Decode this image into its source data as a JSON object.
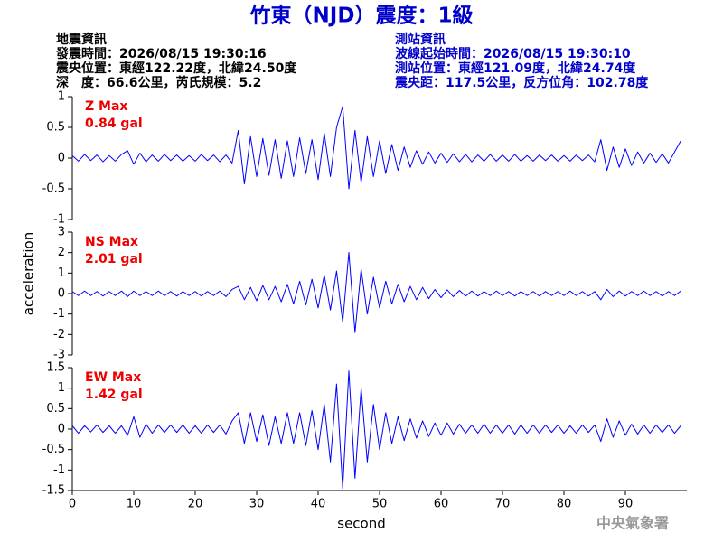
{
  "header": {
    "title": "竹東（NJD）震度：1級",
    "quake_info": [
      "地震資訊",
      "發震時間：2026/08/15 19:30:16",
      "震央位置：東經122.22度，北緯24.50度",
      "深　度：66.6公里，芮氏規模：5.2"
    ],
    "station_info": [
      "測站資訊",
      "波線起始時間：2026/08/15 19:30:10",
      "測站位置：東經121.09度，北緯24.74度",
      "震央距：117.5公里，反方位角：102.78度"
    ],
    "watermark": "中央氣象署"
  },
  "chart_data": {
    "type": "line",
    "xlabel": "second",
    "ylabel": "acceleration",
    "xlim": [
      0,
      100
    ],
    "xticks": [
      0,
      10,
      20,
      30,
      40,
      50,
      60,
      70,
      80,
      90
    ],
    "x": [
      0,
      1,
      2,
      3,
      4,
      5,
      6,
      7,
      8,
      9,
      10,
      11,
      12,
      13,
      14,
      15,
      16,
      17,
      18,
      19,
      20,
      21,
      22,
      23,
      24,
      25,
      26,
      27,
      28,
      29,
      30,
      31,
      32,
      33,
      34,
      35,
      36,
      37,
      38,
      39,
      40,
      41,
      42,
      43,
      44,
      45,
      46,
      47,
      48,
      49,
      50,
      51,
      52,
      53,
      54,
      55,
      56,
      57,
      58,
      59,
      60,
      61,
      62,
      63,
      64,
      65,
      66,
      67,
      68,
      69,
      70,
      71,
      72,
      73,
      74,
      75,
      76,
      77,
      78,
      79,
      80,
      81,
      82,
      83,
      84,
      85,
      86,
      87,
      88,
      89,
      90,
      91,
      92,
      93,
      94,
      95,
      96,
      97,
      98,
      99
    ],
    "panels": [
      {
        "ylim": [
          -1,
          1
        ],
        "yticks": [
          -1,
          -0.5,
          0,
          0.5,
          1
        ],
        "annotation": "0.84 gal",
        "series": [
          {
            "name": "Z Max",
            "color": "#0000ff",
            "values": [
              0.04,
              -0.05,
              0.06,
              -0.04,
              0.05,
              -0.06,
              0.04,
              -0.05,
              0.06,
              0.12,
              -0.1,
              0.08,
              -0.06,
              0.05,
              -0.05,
              0.06,
              -0.04,
              0.05,
              -0.05,
              0.04,
              -0.05,
              0.06,
              -0.04,
              0.05,
              -0.06,
              0.05,
              -0.08,
              0.45,
              -0.42,
              0.35,
              -0.3,
              0.32,
              -0.28,
              0.3,
              -0.33,
              0.28,
              -0.3,
              0.33,
              -0.25,
              0.3,
              -0.35,
              0.4,
              -0.3,
              0.5,
              0.84,
              -0.5,
              0.45,
              -0.4,
              0.35,
              -0.3,
              0.28,
              -0.25,
              0.22,
              -0.2,
              0.18,
              -0.15,
              0.12,
              -0.1,
              0.1,
              -0.08,
              0.08,
              -0.07,
              0.07,
              -0.06,
              0.06,
              -0.06,
              0.05,
              -0.05,
              0.06,
              -0.05,
              0.05,
              -0.05,
              0.06,
              -0.05,
              0.04,
              -0.05,
              0.05,
              -0.04,
              0.05,
              -0.05,
              0.04,
              -0.05,
              0.05,
              -0.04,
              0.05,
              -0.06,
              0.3,
              -0.2,
              0.18,
              -0.15,
              0.15,
              -0.12,
              0.1,
              -0.08,
              0.08,
              -0.07,
              0.07,
              -0.08,
              0.1,
              0.28
            ]
          }
        ]
      },
      {
        "ylim": [
          -3,
          3
        ],
        "yticks": [
          -3,
          -2,
          -1,
          0,
          1,
          2,
          3
        ],
        "annotation": "2.01 gal",
        "series": [
          {
            "name": "NS Max",
            "color": "#0000ff",
            "values": [
              0.1,
              -0.1,
              0.12,
              -0.1,
              0.1,
              -0.12,
              0.1,
              -0.1,
              0.12,
              -0.15,
              0.12,
              -0.1,
              0.1,
              -0.1,
              0.12,
              -0.1,
              0.1,
              -0.12,
              0.1,
              -0.1,
              0.1,
              -0.12,
              0.1,
              -0.1,
              0.12,
              -0.15,
              0.2,
              0.35,
              -0.3,
              0.3,
              -0.35,
              0.4,
              -0.3,
              0.35,
              -0.4,
              0.45,
              -0.5,
              0.6,
              -0.55,
              0.7,
              -0.7,
              0.9,
              -0.8,
              1.1,
              -1.4,
              2.01,
              -1.9,
              1.2,
              -1.0,
              0.8,
              -0.7,
              0.6,
              -0.5,
              0.45,
              -0.4,
              0.35,
              -0.3,
              0.3,
              -0.25,
              0.2,
              -0.2,
              0.18,
              -0.15,
              0.15,
              -0.12,
              0.12,
              -0.12,
              0.1,
              -0.1,
              0.12,
              -0.1,
              0.1,
              -0.12,
              0.1,
              -0.1,
              0.1,
              -0.12,
              0.1,
              -0.1,
              0.1,
              -0.1,
              0.12,
              -0.1,
              0.1,
              -0.12,
              0.1,
              -0.3,
              0.2,
              -0.15,
              0.12,
              -0.12,
              0.1,
              -0.1,
              0.12,
              -0.1,
              0.1,
              -0.12,
              0.1,
              -0.1,
              0.12
            ]
          }
        ]
      },
      {
        "ylim": [
          -1.5,
          1.5
        ],
        "yticks": [
          -1.5,
          -1,
          -0.5,
          0,
          0.5,
          1,
          1.5
        ],
        "annotation": "1.42 gal",
        "series": [
          {
            "name": "EW Max",
            "color": "#0000ff",
            "values": [
              0.08,
              -0.1,
              0.08,
              -0.07,
              0.1,
              -0.08,
              0.08,
              -0.1,
              0.08,
              -0.15,
              0.3,
              -0.2,
              0.12,
              -0.1,
              0.1,
              -0.08,
              0.1,
              -0.08,
              0.1,
              -0.1,
              0.08,
              -0.1,
              0.1,
              -0.08,
              0.1,
              -0.12,
              0.2,
              0.4,
              -0.35,
              0.4,
              -0.3,
              0.35,
              -0.4,
              0.3,
              -0.35,
              0.4,
              -0.35,
              0.4,
              -0.4,
              0.45,
              -0.5,
              0.6,
              -0.8,
              1.1,
              -1.45,
              1.42,
              -1.2,
              1.0,
              -0.8,
              0.6,
              -0.5,
              0.4,
              -0.35,
              0.3,
              -0.28,
              0.25,
              -0.22,
              0.2,
              -0.18,
              0.15,
              -0.15,
              0.15,
              -0.12,
              0.12,
              -0.1,
              0.1,
              -0.1,
              0.12,
              -0.1,
              0.1,
              -0.1,
              0.1,
              -0.12,
              0.1,
              -0.1,
              0.1,
              -0.1,
              0.1,
              -0.08,
              0.1,
              -0.1,
              0.08,
              -0.1,
              0.1,
              -0.08,
              0.1,
              -0.3,
              0.25,
              -0.2,
              0.2,
              -0.15,
              0.12,
              -0.12,
              0.1,
              -0.1,
              0.1,
              -0.08,
              0.1,
              -0.1,
              0.08
            ]
          }
        ]
      }
    ]
  }
}
